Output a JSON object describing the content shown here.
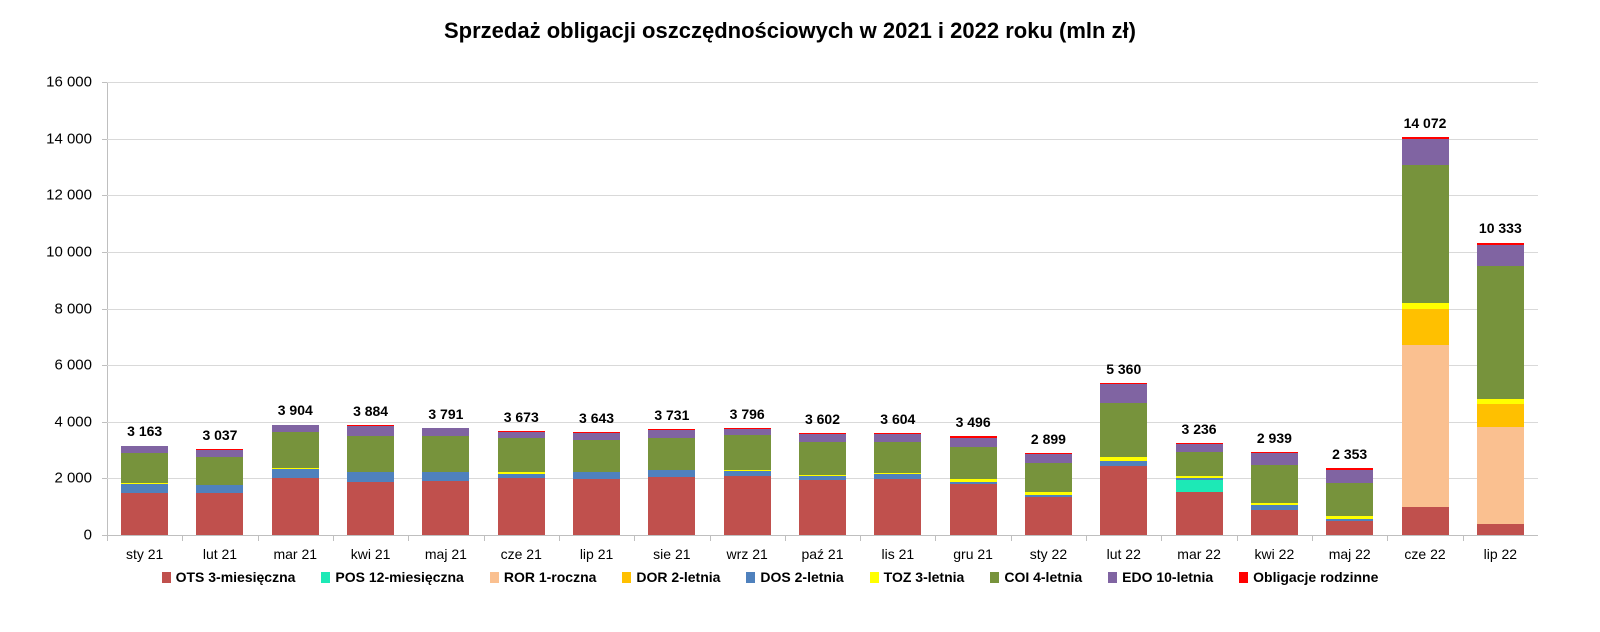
{
  "chart_data": {
    "type": "bar",
    "stacked": true,
    "title": "Sprzedaż obligacji oszczędnościowych w 2021 i 2022 roku (mln zł)",
    "xlabel": "",
    "ylabel": "",
    "ylim": [
      0,
      16000
    ],
    "yticks": [
      "0",
      "2 000",
      "4 000",
      "6 000",
      "8 000",
      "10 000",
      "12 000",
      "14 000",
      "16 000"
    ],
    "ytick_values": [
      0,
      2000,
      4000,
      6000,
      8000,
      10000,
      12000,
      14000,
      16000
    ],
    "grid": true,
    "legend_position": "bottom",
    "categories": [
      "sty 21",
      "lut 21",
      "mar 21",
      "kwi 21",
      "maj 21",
      "cze 21",
      "lip 21",
      "sie 21",
      "wrz 21",
      "paź 21",
      "lis 21",
      "gru 21",
      "sty 22",
      "lut 22",
      "mar 22",
      "kwi 22",
      "maj 22",
      "cze 22",
      "lip 22"
    ],
    "totals": [
      3163,
      3037,
      3904,
      3884,
      3791,
      3673,
      3643,
      3731,
      3796,
      3602,
      3604,
      3496,
      2899,
      5360,
      3236,
      2939,
      2353,
      14072,
      10333
    ],
    "total_labels": [
      "3 163",
      "3 037",
      "3 904",
      "3 884",
      "3 791",
      "3 673",
      "3 643",
      "3 731",
      "3 796",
      "3 602",
      "3 604",
      "3 496",
      "2 899",
      "5 360",
      "3 236",
      "2 939",
      "2 353",
      "14 072",
      "10 333"
    ],
    "series": [
      {
        "name": "OTS 3-miesięczna",
        "color": "#c0504d",
        "values": [
          1480,
          1470,
          2010,
          1880,
          1920,
          2000,
          1980,
          2060,
          2070,
          1960,
          1970,
          1800,
          1340,
          2440,
          1510,
          900,
          500,
          1000,
          400
        ]
      },
      {
        "name": "POS 12-miesięczna",
        "color": "#1de9b6",
        "values": [
          0,
          0,
          0,
          0,
          0,
          0,
          0,
          0,
          0,
          0,
          0,
          0,
          0,
          0,
          420,
          0,
          0,
          0,
          0
        ]
      },
      {
        "name": "ROR 1-roczna",
        "color": "#fac090",
        "values": [
          0,
          0,
          0,
          0,
          0,
          0,
          0,
          0,
          0,
          0,
          0,
          0,
          0,
          0,
          0,
          0,
          0,
          5700,
          3420
        ]
      },
      {
        "name": "DOR 2-letnia",
        "color": "#ffc000",
        "values": [
          0,
          0,
          0,
          0,
          0,
          0,
          0,
          0,
          0,
          0,
          0,
          0,
          0,
          0,
          0,
          0,
          0,
          1300,
          820
        ]
      },
      {
        "name": "DOS 2-letnia",
        "color": "#4f81bd",
        "values": [
          320,
          310,
          320,
          330,
          320,
          170,
          240,
          220,
          180,
          110,
          170,
          90,
          90,
          180,
          80,
          150,
          80,
          0,
          0
        ]
      },
      {
        "name": "TOZ 3-letnia",
        "color": "#ffff00",
        "values": [
          50,
          0,
          40,
          30,
          0,
          40,
          0,
          0,
          40,
          40,
          50,
          80,
          90,
          130,
          80,
          80,
          90,
          180,
          150
        ]
      },
      {
        "name": "COI 4-letnia",
        "color": "#77933c",
        "values": [
          1040,
          990,
          1280,
          1250,
          1270,
          1220,
          1140,
          1160,
          1230,
          1190,
          1080,
          1130,
          1010,
          1920,
          840,
          1360,
          1170,
          4880,
          4730
        ]
      },
      {
        "name": "EDO 10-letnia",
        "color": "#8064a2",
        "values": [
          250,
          240,
          230,
          370,
          260,
          210,
          250,
          260,
          240,
          260,
          310,
          340,
          330,
          650,
          270,
          400,
          470,
          920,
          730
        ]
      },
      {
        "name": "Obligacje rodzinne",
        "color": "#ff0000",
        "values": [
          23,
          27,
          24,
          24,
          21,
          33,
          33,
          31,
          36,
          42,
          24,
          56,
          39,
          40,
          36,
          49,
          43,
          92,
          83
        ]
      }
    ]
  }
}
